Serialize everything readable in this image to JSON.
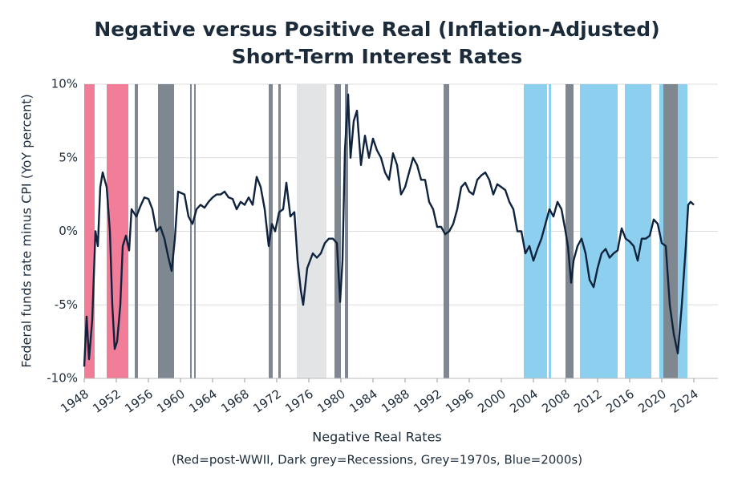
{
  "chart_data": {
    "type": "line",
    "title": [
      "Negative versus Positive Real (Inflation-Adjusted)",
      "Short-Term Interest Rates"
    ],
    "y_label": "Federal funds rate minus CPI (YoY percent)",
    "x_label": "Negative Real Rates",
    "note": "(Red=post-WWII, Dark grey=Recessions, Grey=1970s, Blue=2000s)",
    "xlim": [
      1948,
      2027
    ],
    "xticks": [
      1948,
      1952,
      1956,
      1960,
      1964,
      1968,
      1972,
      1976,
      1980,
      1984,
      1988,
      1992,
      1996,
      2000,
      2004,
      2008,
      2012,
      2016,
      2020,
      2024
    ],
    "ylim": [
      -10,
      10
    ],
    "yticks": [
      {
        "value": -10,
        "label": "-10%"
      },
      {
        "value": -5,
        "label": "-5%"
      },
      {
        "value": 0,
        "label": "0%"
      },
      {
        "value": 5,
        "label": "5%"
      },
      {
        "value": 10,
        "label": "10%"
      }
    ],
    "grid": true,
    "regions": [
      {
        "start": 1948.0,
        "end": 1949.3,
        "color": "#f27d98"
      },
      {
        "start": 1950.8,
        "end": 1953.5,
        "color": "#f27d98"
      },
      {
        "start": 1954.3,
        "end": 1954.7,
        "color": "#7f8891"
      },
      {
        "start": 1957.2,
        "end": 1959.2,
        "color": "#7f8891"
      },
      {
        "start": 1961.2,
        "end": 1961.4,
        "color": "#7f8891"
      },
      {
        "start": 1961.7,
        "end": 1961.9,
        "color": "#7f8891"
      },
      {
        "start": 1971.0,
        "end": 1971.5,
        "color": "#7f8891"
      },
      {
        "start": 1972.2,
        "end": 1972.5,
        "color": "#7f8891"
      },
      {
        "start": 1974.5,
        "end": 1978.2,
        "color": "#e2e4e6"
      },
      {
        "start": 1979.2,
        "end": 1980.0,
        "color": "#7f8891"
      },
      {
        "start": 1980.5,
        "end": 1980.9,
        "color": "#7f8891"
      },
      {
        "start": 1992.8,
        "end": 1993.5,
        "color": "#7f8891"
      },
      {
        "start": 2002.8,
        "end": 2005.7,
        "color": "#8ccfee"
      },
      {
        "start": 2005.9,
        "end": 2006.2,
        "color": "#8ccfee"
      },
      {
        "start": 2008.0,
        "end": 2009.0,
        "color": "#7f8891"
      },
      {
        "start": 2009.8,
        "end": 2014.5,
        "color": "#8ccfee"
      },
      {
        "start": 2015.4,
        "end": 2018.7,
        "color": "#8ccfee"
      },
      {
        "start": 2019.7,
        "end": 2020.2,
        "color": "#8ccfee"
      },
      {
        "start": 2020.2,
        "end": 2022.0,
        "color": "#7f8891"
      },
      {
        "start": 2022.0,
        "end": 2023.2,
        "color": "#8ccfee"
      }
    ],
    "series": [
      {
        "color": "#0f233e",
        "x": [
          1948.0,
          1948.3,
          1948.6,
          1949.0,
          1949.4,
          1949.7,
          1950.0,
          1950.3,
          1950.8,
          1951.2,
          1951.5,
          1951.8,
          1952.1,
          1952.5,
          1952.8,
          1953.2,
          1953.6,
          1953.9,
          1954.5,
          1955.0,
          1955.5,
          1956.0,
          1956.5,
          1957.0,
          1957.5,
          1958.0,
          1958.5,
          1958.9,
          1959.3,
          1959.7,
          1960.5,
          1961.0,
          1961.5,
          1962.0,
          1962.5,
          1963.0,
          1963.5,
          1964.0,
          1964.5,
          1965.0,
          1965.5,
          1966.0,
          1966.5,
          1967.0,
          1967.5,
          1968.0,
          1968.5,
          1969.0,
          1969.5,
          1970.0,
          1970.5,
          1971.0,
          1971.4,
          1971.8,
          1972.3,
          1972.8,
          1973.2,
          1973.7,
          1974.2,
          1974.6,
          1975.0,
          1975.3,
          1975.8,
          1976.5,
          1977.0,
          1977.5,
          1978.0,
          1978.5,
          1979.0,
          1979.5,
          1979.9,
          1980.2,
          1980.5,
          1980.9,
          1981.2,
          1981.6,
          1982.0,
          1982.5,
          1983.0,
          1983.5,
          1984.0,
          1984.5,
          1985.0,
          1985.5,
          1986.0,
          1986.5,
          1987.0,
          1987.5,
          1988.0,
          1988.5,
          1989.0,
          1989.5,
          1990.0,
          1990.5,
          1991.0,
          1991.5,
          1992.0,
          1992.5,
          1993.0,
          1993.5,
          1994.0,
          1994.5,
          1995.0,
          1995.5,
          1996.0,
          1996.5,
          1997.0,
          1997.5,
          1998.0,
          1998.5,
          1999.0,
          1999.5,
          2000.0,
          2000.5,
          2001.0,
          2001.5,
          2002.0,
          2002.5,
          2003.0,
          2003.5,
          2004.0,
          2004.5,
          2005.0,
          2005.5,
          2006.0,
          2006.5,
          2007.0,
          2007.5,
          2008.0,
          2008.3,
          2008.7,
          2009.0,
          2009.5,
          2010.0,
          2010.5,
          2011.0,
          2011.5,
          2012.0,
          2012.5,
          2013.0,
          2013.5,
          2014.0,
          2014.5,
          2015.0,
          2015.5,
          2016.0,
          2016.5,
          2017.0,
          2017.5,
          2018.0,
          2018.5,
          2019.0,
          2019.5,
          2020.0,
          2020.5,
          2021.0,
          2021.5,
          2022.0,
          2022.5,
          2023.0,
          2023.3,
          2023.6,
          2024.0
        ],
        "values": [
          -9.2,
          -5.8,
          -8.7,
          -6,
          0,
          -1,
          3,
          4,
          3,
          0,
          -5,
          -8,
          -7.5,
          -5,
          -1,
          -0.3,
          -1.3,
          1.5,
          1,
          1.7,
          2.3,
          2.2,
          1.5,
          0,
          0.3,
          -0.5,
          -1.8,
          -2.7,
          -0.5,
          2.7,
          2.5,
          1,
          0.5,
          1.5,
          1.8,
          1.6,
          2,
          2.3,
          2.5,
          2.5,
          2.7,
          2.3,
          2.2,
          1.5,
          2,
          1.8,
          2.3,
          1.8,
          3.7,
          3,
          1.5,
          -1,
          0.5,
          0,
          1.3,
          1.5,
          3.3,
          1,
          1.3,
          -2,
          -4,
          -5,
          -2.5,
          -1.5,
          -1.8,
          -1.5,
          -0.8,
          -0.5,
          -0.5,
          -0.8,
          -4.8,
          -2,
          5.5,
          9.3,
          5,
          7.5,
          8.2,
          4.5,
          6.5,
          5,
          6.3,
          5.5,
          5,
          4,
          3.5,
          5.3,
          4.5,
          2.5,
          3,
          4,
          5,
          4.5,
          3.5,
          3.5,
          2,
          1.5,
          0.3,
          0.3,
          -0.2,
          0,
          0.5,
          1.5,
          3,
          3.3,
          2.7,
          2.5,
          3.5,
          3.8,
          4,
          3.5,
          2.5,
          3.2,
          3,
          2.8,
          2,
          1.5,
          0,
          0,
          -1.5,
          -1,
          -2,
          -1.2,
          -0.5,
          0.5,
          1.5,
          1,
          2,
          1.5,
          0,
          -1,
          -3.5,
          -2,
          -1,
          -0.5,
          -1.5,
          -3.3,
          -3.8,
          -2.5,
          -1.5,
          -1.2,
          -1.8,
          -1.5,
          -1.3,
          0.2,
          -0.5,
          -0.7,
          -1,
          -2,
          -0.5,
          -0.5,
          -0.3,
          0.8,
          0.5,
          -0.8,
          -1,
          -5,
          -7,
          -8.3,
          -5,
          -1,
          1.8,
          2,
          1.8
        ]
      }
    ]
  }
}
